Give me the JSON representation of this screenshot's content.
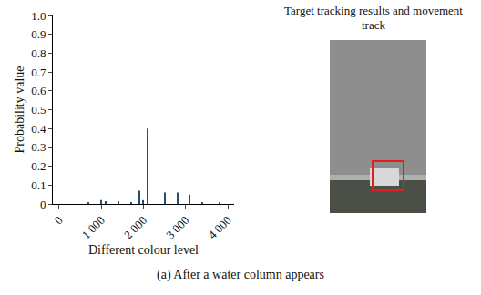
{
  "chart_data": {
    "type": "bar",
    "x_label": "Different colour level",
    "y_label": "Probability value",
    "x": [
      700,
      1000,
      1100,
      1400,
      1700,
      1900,
      2000,
      2100,
      2500,
      2800,
      3100,
      3400,
      3800
    ],
    "values": [
      0.005,
      0.02,
      0.015,
      0.015,
      0.01,
      0.07,
      0.02,
      0.4,
      0.06,
      0.06,
      0.05,
      0.005,
      0.005
    ],
    "color": "#1f4e79",
    "xlim": [
      -150,
      4150
    ],
    "xticks": [
      0,
      {
        "value": 1000,
        "label": "1 000"
      },
      {
        "value": 2000,
        "label": "2 000"
      },
      {
        "value": 3000,
        "label": "3 000"
      },
      {
        "value": 4000,
        "label": "4 000"
      }
    ],
    "ylim": [
      0,
      1
    ],
    "yticks": [
      0,
      0.1,
      0.2,
      0.3,
      0.4,
      0.5,
      0.6,
      0.7,
      0.8,
      0.9,
      {
        "value": 1,
        "label": "1.0"
      }
    ],
    "grid": false
  },
  "panel_title": "Target tracking results and movement track",
  "caption": "(a) After a water column appears"
}
